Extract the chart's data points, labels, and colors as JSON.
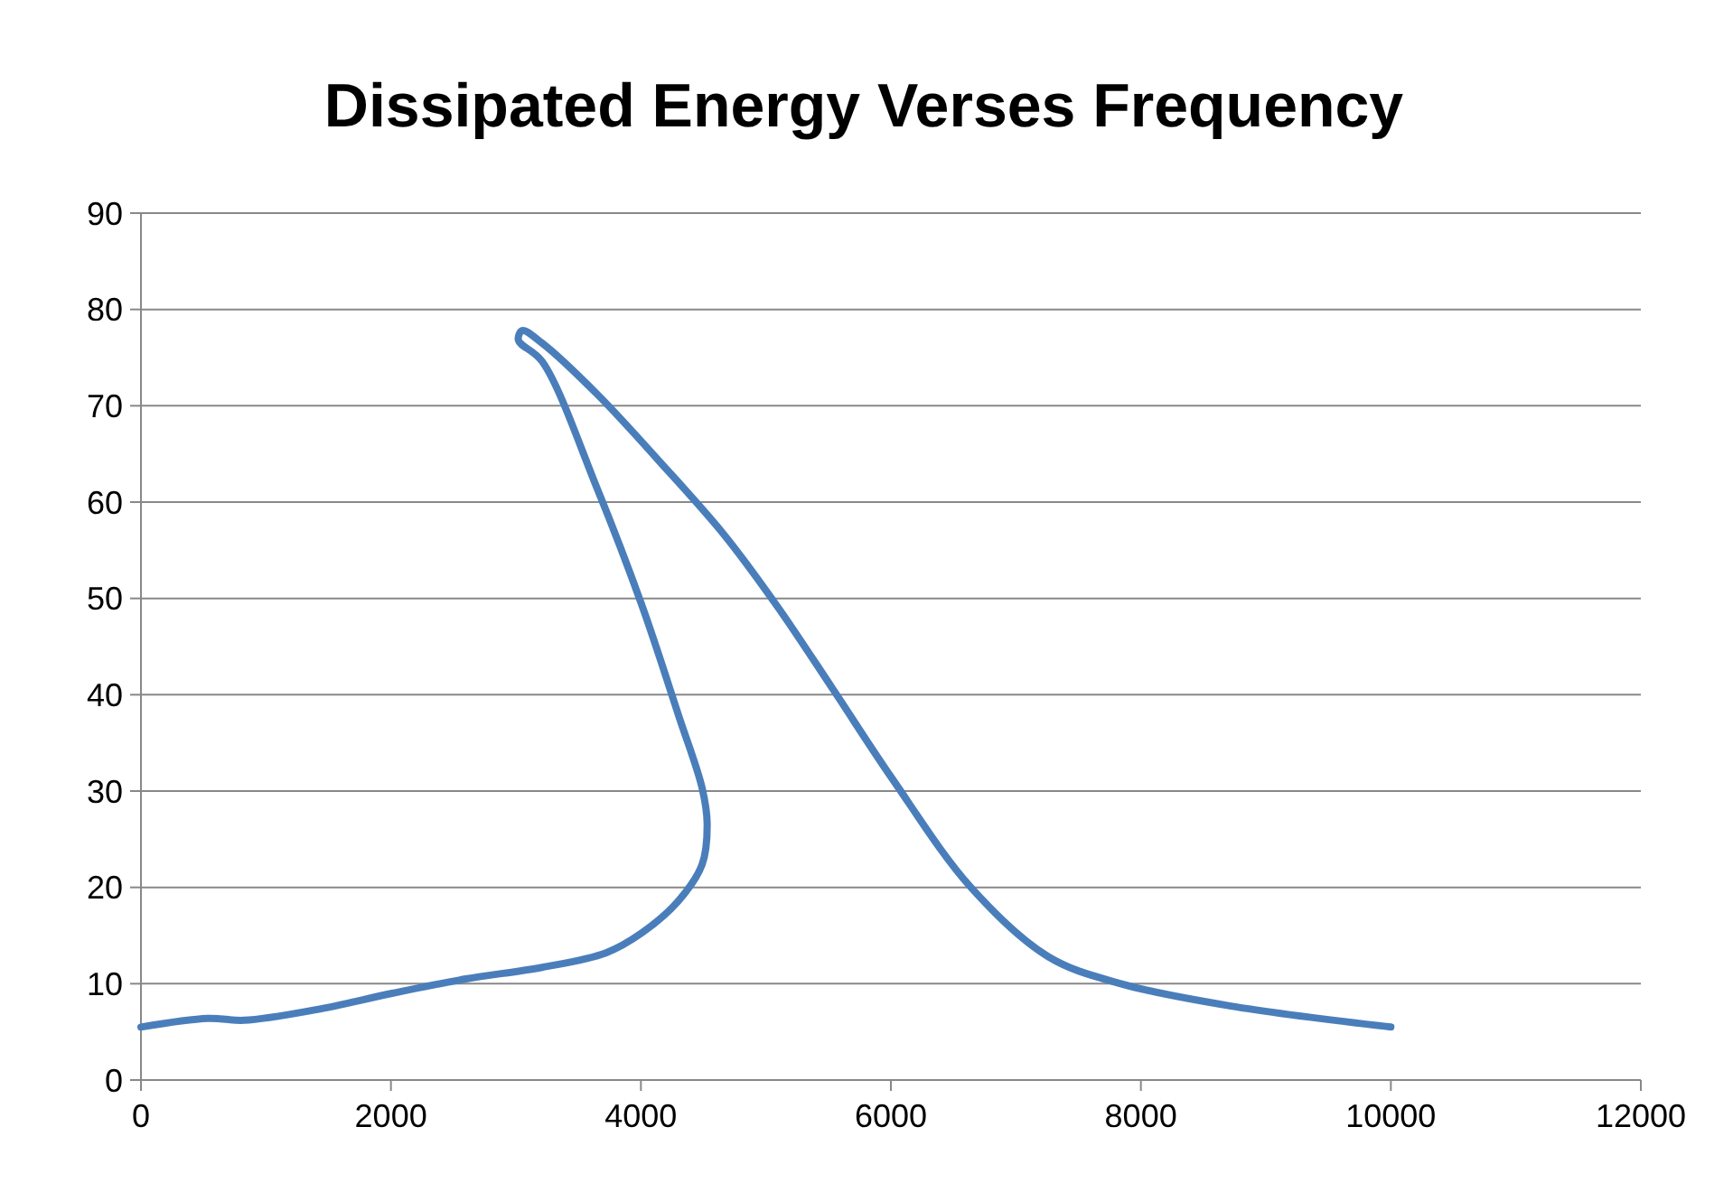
{
  "chart_data": {
    "type": "line",
    "title": "Dissipated Energy Verses Frequency",
    "series": [
      {
        "color": "#4a7ebb",
        "x": [
          0,
          535,
          825,
          1400,
          2010,
          2600,
          3210,
          3720,
          4010,
          4300,
          4490,
          4530,
          4490,
          4300,
          4010,
          3650,
          3210,
          3020,
          3050,
          3210,
          3650,
          4150,
          4660,
          5090,
          5530,
          6010,
          6640,
          7260,
          7840,
          8710,
          10000
        ],
        "values": [
          5.5,
          6.4,
          6.2,
          7.3,
          9.0,
          10.5,
          11.7,
          13.2,
          15.3,
          18.6,
          22.4,
          26.6,
          30.3,
          37.9,
          49.2,
          61.4,
          74.6,
          76.8,
          77.8,
          76.5,
          71.2,
          64.2,
          56.7,
          49.2,
          40.7,
          31.3,
          20.0,
          12.8,
          10.0,
          7.7,
          5.5
        ]
      }
    ],
    "xlim": [
      0,
      12000
    ],
    "xticks": [
      0,
      2000,
      4000,
      6000,
      8000,
      10000,
      12000
    ],
    "ylim": [
      0,
      90
    ],
    "yticks": [
      0,
      10,
      20,
      30,
      40,
      50,
      60,
      70,
      80,
      90
    ],
    "grid": "y",
    "marker": "none",
    "line_style": "solid"
  }
}
